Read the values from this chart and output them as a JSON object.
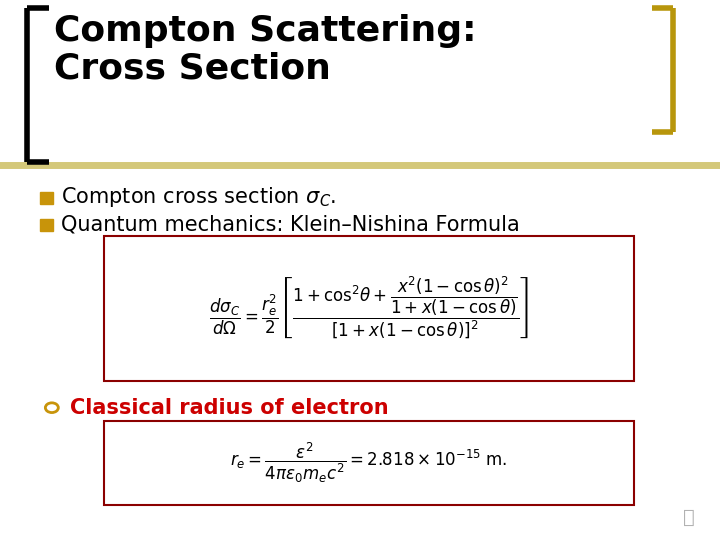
{
  "bg_color": "#ffffff",
  "title_text": "Compton Scattering:\nCross Section",
  "title_color": "#000000",
  "title_fontsize": 26,
  "bracket_color_left": "#000000",
  "bracket_color_right": "#b8960c",
  "header_line_color": "#d4c87a",
  "bullet1_text": "Compton cross section $\\sigma_C$.",
  "bullet2_text": "Quantum mechanics: Klein–Nishina Formula",
  "bullet_color": "#000000",
  "bullet_fontsize": 15,
  "bullet_square_color": "#c8940a",
  "sub_bullet_text": "Classical radius of electron",
  "sub_bullet_color": "#cc0000",
  "sub_bullet_fontsize": 15,
  "sub_bullet_circle_color": "#c8940a",
  "formula1": "$\\dfrac{d\\sigma_C}{d\\Omega} = \\dfrac{r_e^2}{2} \\left[ \\dfrac{1 + \\cos^2\\!\\theta + \\dfrac{x^2(1-\\cos\\theta)^2}{1+x(1-\\cos\\theta)}}{[1+x(1-\\cos\\theta)]^2} \\right]$",
  "formula2": "$r_e = \\dfrac{\\epsilon^2}{4\\pi\\epsilon_0 m_e c^2} = 2.818 \\times 10^{-15}$ m.",
  "formula_fontsize": 12,
  "formula_box1_color": "#8b0000",
  "formula_box2_color": "#8b0000",
  "formula_box_facecolor": "#ffffff"
}
